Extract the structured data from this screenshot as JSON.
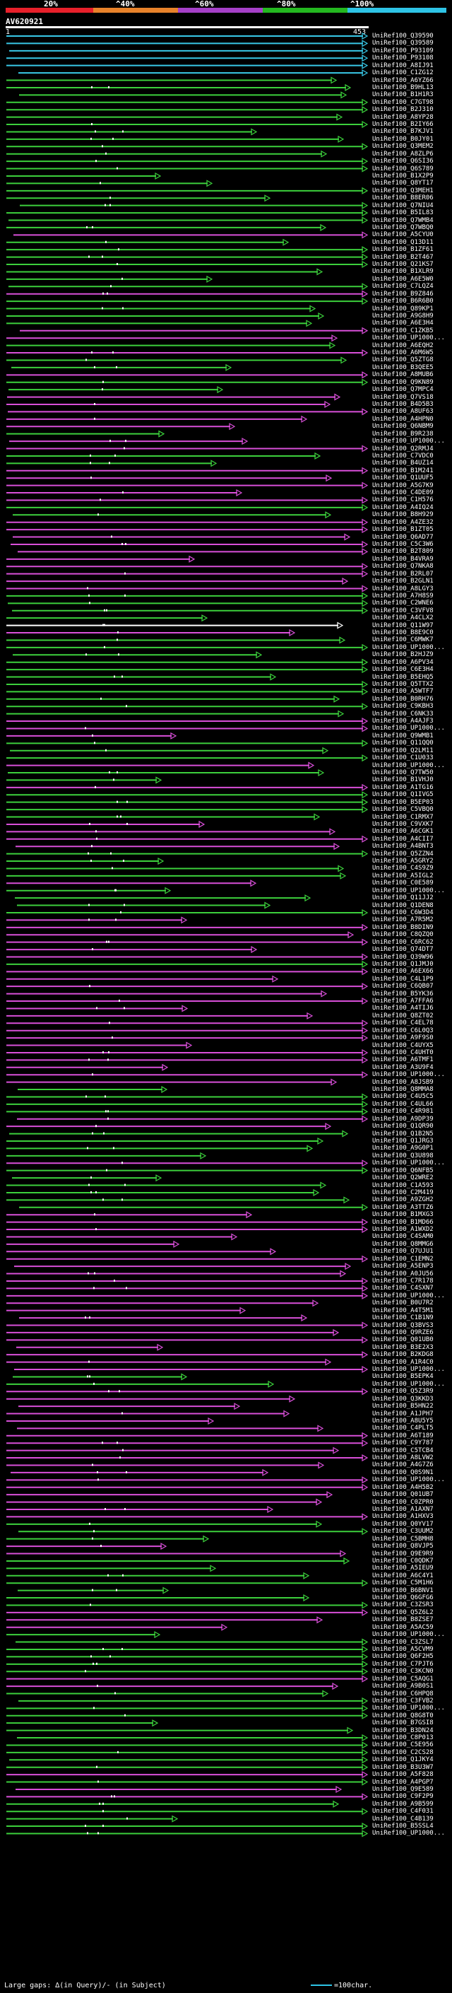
{
  "scale": {
    "labels": [
      "20%",
      "^40%",
      "^60%",
      "^80%",
      "^100%"
    ],
    "colors": [
      "#e8202a",
      "#e8822a",
      "#a640c8",
      "#24b820",
      "#2ec4e6"
    ]
  },
  "query": {
    "id": "AV620921",
    "start": "1",
    "end": "453"
  },
  "hit_colors": {
    "cyan": "#39c9e8",
    "green": "#3cd03c",
    "magenta": "#d94fd9",
    "white": "#ffffff"
  },
  "hits": [
    {
      "id": "UniRef100_Q39590",
      "c": "cyan"
    },
    {
      "id": "UniRef100_Q39589",
      "c": "cyan"
    },
    {
      "id": "UniRef100_P93109",
      "c": "cyan"
    },
    {
      "id": "UniRef100_P93108",
      "c": "cyan"
    },
    {
      "id": "UniRef100_A8IJ91",
      "c": "cyan"
    },
    {
      "id": "UniRef100_C1ZG12",
      "c": "cyan"
    },
    {
      "id": "UniRef100_A6YZ66",
      "c": "green"
    },
    {
      "id": "UniRef100_B9HL13",
      "c": "green"
    },
    {
      "id": "UniRef100_B1H1R3",
      "c": "green"
    },
    {
      "id": "UniRef100_C7GT98",
      "c": "green"
    },
    {
      "id": "UniRef100_B2J310",
      "c": "green"
    },
    {
      "id": "UniRef100_A8YP28",
      "c": "green"
    },
    {
      "id": "UniRef100_B2IY66",
      "c": "green"
    },
    {
      "id": "UniRef100_B7KJV1",
      "c": "green"
    },
    {
      "id": "UniRef100_B0JY01",
      "c": "green"
    },
    {
      "id": "UniRef100_Q3MEM2",
      "c": "green"
    },
    {
      "id": "UniRef100_A8ZLP6",
      "c": "green"
    },
    {
      "id": "UniRef100_Q6SI36",
      "c": "green"
    },
    {
      "id": "UniRef100_Q6S789",
      "c": "green"
    },
    {
      "id": "UniRef100_B1X2P9",
      "c": "green"
    },
    {
      "id": "UniRef100_Q8YT17",
      "c": "green"
    },
    {
      "id": "UniRef100_Q3MEH1",
      "c": "green"
    },
    {
      "id": "UniRef100_B8ER06",
      "c": "green"
    },
    {
      "id": "UniRef100_Q7NIU4",
      "c": "green"
    },
    {
      "id": "UniRef100_B5IL83",
      "c": "green"
    },
    {
      "id": "UniRef100_Q7WMB4",
      "c": "green"
    },
    {
      "id": "UniRef100_Q7WBQ0",
      "c": "green"
    },
    {
      "id": "UniRef100_A5CYU0",
      "c": "magenta"
    },
    {
      "id": "UniRef100_Q13D11",
      "c": "green"
    },
    {
      "id": "UniRef100_B1ZF61",
      "c": "green"
    },
    {
      "id": "UniRef100_B2T467",
      "c": "green"
    },
    {
      "id": "UniRef100_Q21KS7",
      "c": "green"
    },
    {
      "id": "UniRef100_B1XLR9",
      "c": "green"
    },
    {
      "id": "UniRef100_A6E5W0",
      "c": "green"
    },
    {
      "id": "UniRef100_C7LQZ4",
      "c": "green"
    },
    {
      "id": "UniRef100_B9Z846",
      "c": "magenta"
    },
    {
      "id": "UniRef100_B6R6B0",
      "c": "green"
    },
    {
      "id": "UniRef100_Q89KP1",
      "c": "green"
    },
    {
      "id": "UniRef100_A9G8H9",
      "c": "green"
    },
    {
      "id": "UniRef100_A6E3H4",
      "c": "green"
    },
    {
      "id": "UniRef100_C1ZKB5",
      "c": "magenta"
    },
    {
      "id": "UniRef100_UP1000...",
      "c": "magenta"
    },
    {
      "id": "UniRef100_A6EQH2",
      "c": "green"
    },
    {
      "id": "UniRef100_A6M6W5",
      "c": "magenta"
    },
    {
      "id": "UniRef100_Q5ZTG8",
      "c": "green"
    },
    {
      "id": "UniRef100_B3QEE5",
      "c": "green"
    },
    {
      "id": "UniRef100_A8MUB6",
      "c": "magenta"
    },
    {
      "id": "UniRef100_Q9KN89",
      "c": "green"
    },
    {
      "id": "UniRef100_Q7MPC4",
      "c": "green"
    },
    {
      "id": "UniRef100_Q7VS18",
      "c": "magenta"
    },
    {
      "id": "UniRef100_B4D5B3",
      "c": "magenta"
    },
    {
      "id": "UniRef100_A8UF63",
      "c": "magenta"
    },
    {
      "id": "UniRef100_A4HPN0",
      "c": "magenta"
    },
    {
      "id": "UniRef100_Q6NBM9",
      "c": "magenta"
    },
    {
      "id": "UniRef100_B9R238",
      "c": "green"
    },
    {
      "id": "UniRef100_UP1000...",
      "c": "magenta"
    },
    {
      "id": "UniRef100_Q2RMJ4",
      "c": "magenta"
    },
    {
      "id": "UniRef100_C7VDC0",
      "c": "green"
    },
    {
      "id": "UniRef100_B4UZ14",
      "c": "green"
    },
    {
      "id": "UniRef100_B1M241",
      "c": "magenta"
    },
    {
      "id": "UniRef100_Q1UUF5",
      "c": "magenta"
    },
    {
      "id": "UniRef100_A5G7K9",
      "c": "magenta"
    },
    {
      "id": "UniRef100_C4DE09",
      "c": "magenta"
    },
    {
      "id": "UniRef100_C1H576",
      "c": "magenta"
    },
    {
      "id": "UniRef100_A4IQ24",
      "c": "green"
    },
    {
      "id": "UniRef100_B8H929",
      "c": "green"
    },
    {
      "id": "UniRef100_A4ZE32",
      "c": "magenta"
    },
    {
      "id": "UniRef100_B1ZT05",
      "c": "magenta"
    },
    {
      "id": "UniRef100_Q6AD77",
      "c": "magenta"
    },
    {
      "id": "UniRef100_C5C3W6",
      "c": "magenta"
    },
    {
      "id": "UniRef100_B2T809",
      "c": "magenta"
    },
    {
      "id": "UniRef100_B4VRA9",
      "c": "magenta"
    },
    {
      "id": "UniRef100_Q7NKA8",
      "c": "magenta"
    },
    {
      "id": "UniRef100_B2RL07",
      "c": "magenta"
    },
    {
      "id": "UniRef100_B2GLN1",
      "c": "magenta"
    },
    {
      "id": "UniRef100_A8LGY3",
      "c": "magenta"
    },
    {
      "id": "UniRef100_A7H8S9",
      "c": "green"
    },
    {
      "id": "UniRef100_C2WNE6",
      "c": "green"
    },
    {
      "id": "UniRef100_C3VFV8",
      "c": "green"
    },
    {
      "id": "UniRef100_A4CLX2",
      "c": "green"
    },
    {
      "id": "UniRef100_Q11W97",
      "c": "white"
    },
    {
      "id": "UniRef100_B8E9C0",
      "c": "magenta"
    },
    {
      "id": "UniRef100_C6MWK7",
      "c": "green"
    },
    {
      "id": "UniRef100_UP1000...",
      "c": "green"
    },
    {
      "id": "UniRef100_B2HJZ9",
      "c": "green"
    },
    {
      "id": "UniRef100_A6PV34",
      "c": "green"
    },
    {
      "id": "UniRef100_C6E3H4",
      "c": "green"
    },
    {
      "id": "UniRef100_B5EHQ5",
      "c": "green"
    },
    {
      "id": "UniRef100_Q5TTX2",
      "c": "green"
    },
    {
      "id": "UniRef100_A5WTF7",
      "c": "green"
    },
    {
      "id": "UniRef100_B0RH76",
      "c": "green"
    },
    {
      "id": "UniRef100_C9KBH3",
      "c": "green"
    },
    {
      "id": "UniRef100_C6NK33",
      "c": "green"
    },
    {
      "id": "UniRef100_A4AJF3",
      "c": "magenta"
    },
    {
      "id": "UniRef100_UP1000...",
      "c": "magenta"
    },
    {
      "id": "UniRef100_Q9WMB1",
      "c": "magenta"
    },
    {
      "id": "UniRef100_Q11QQ0",
      "c": "green"
    },
    {
      "id": "UniRef100_Q2LM11",
      "c": "green"
    },
    {
      "id": "UniRef100_C1U033",
      "c": "green"
    },
    {
      "id": "UniRef100_UP1000...",
      "c": "magenta"
    },
    {
      "id": "UniRef100_Q7TW50",
      "c": "green"
    },
    {
      "id": "UniRef100_B1VHJ0",
      "c": "green"
    },
    {
      "id": "UniRef100_A1TG16",
      "c": "magenta"
    },
    {
      "id": "UniRef100_Q1IVG5",
      "c": "green"
    },
    {
      "id": "UniRef100_B5EP03",
      "c": "green"
    },
    {
      "id": "UniRef100_C5VBQ0",
      "c": "green"
    },
    {
      "id": "UniRef100_C1RMX7",
      "c": "green"
    },
    {
      "id": "UniRef100_C9VXK7",
      "c": "magenta"
    },
    {
      "id": "UniRef100_A6CGK1",
      "c": "magenta"
    },
    {
      "id": "UniRef100_A4CII7",
      "c": "magenta"
    },
    {
      "id": "UniRef100_A4BNT3",
      "c": "magenta"
    },
    {
      "id": "UniRef100_Q5ZZN4",
      "c": "green"
    },
    {
      "id": "UniRef100_A5GRY2",
      "c": "green"
    },
    {
      "id": "UniRef100_C4S9Z9",
      "c": "green"
    },
    {
      "id": "UniRef100_A5IGL2",
      "c": "green"
    },
    {
      "id": "UniRef100_C0E589",
      "c": "magenta"
    },
    {
      "id": "UniRef100_UP1000...",
      "c": "green"
    },
    {
      "id": "UniRef100_Q11JJ2",
      "c": "green"
    },
    {
      "id": "UniRef100_Q1DEN8",
      "c": "green"
    },
    {
      "id": "UniRef100_C6W3D4",
      "c": "green"
    },
    {
      "id": "UniRef100_A7R5M2",
      "c": "magenta"
    },
    {
      "id": "UniRef100_B8DIN9",
      "c": "magenta"
    },
    {
      "id": "UniRef100_C8QZQ0",
      "c": "magenta"
    },
    {
      "id": "UniRef100_C6RC62",
      "c": "magenta"
    },
    {
      "id": "UniRef100_Q74DT7",
      "c": "magenta"
    },
    {
      "id": "UniRef100_Q39W96",
      "c": "magenta"
    },
    {
      "id": "UniRef100_Q1JMJ0",
      "c": "green"
    },
    {
      "id": "UniRef100_A6EX66",
      "c": "magenta"
    },
    {
      "id": "UniRef100_C4L1P9",
      "c": "magenta"
    },
    {
      "id": "UniRef100_C6QB07",
      "c": "magenta"
    },
    {
      "id": "UniRef100_B5YK36",
      "c": "magenta"
    },
    {
      "id": "UniRef100_A7FFA6",
      "c": "magenta"
    },
    {
      "id": "UniRef100_A4TIJ6",
      "c": "magenta"
    },
    {
      "id": "UniRef100_Q8ZT02",
      "c": "magenta"
    },
    {
      "id": "UniRef100_C4EL78",
      "c": "magenta"
    },
    {
      "id": "UniRef100_C6L0Q3",
      "c": "magenta"
    },
    {
      "id": "UniRef100_A9F9S0",
      "c": "magenta"
    },
    {
      "id": "UniRef100_C4UYX5",
      "c": "magenta"
    },
    {
      "id": "UniRef100_C4UHT0",
      "c": "magenta"
    },
    {
      "id": "UniRef100_A6TMF1",
      "c": "magenta"
    },
    {
      "id": "UniRef100_A3U9F4",
      "c": "magenta"
    },
    {
      "id": "UniRef100_UP1000...",
      "c": "magenta"
    },
    {
      "id": "UniRef100_A8JSB9",
      "c": "magenta"
    },
    {
      "id": "UniRef100_Q8MMA8",
      "c": "green"
    },
    {
      "id": "UniRef100_C4U5C5",
      "c": "green"
    },
    {
      "id": "UniRef100_C4UL66",
      "c": "green"
    },
    {
      "id": "UniRef100_C4R981",
      "c": "green"
    },
    {
      "id": "UniRef100_A9DP39",
      "c": "magenta"
    },
    {
      "id": "UniRef100_Q1QR90",
      "c": "magenta"
    },
    {
      "id": "UniRef100_Q1B2N5",
      "c": "green"
    },
    {
      "id": "UniRef100_Q1JRG3",
      "c": "green"
    },
    {
      "id": "UniRef100_A9G0P1",
      "c": "green"
    },
    {
      "id": "UniRef100_Q3U898",
      "c": "green"
    },
    {
      "id": "UniRef100_UP1000...",
      "c": "magenta"
    },
    {
      "id": "UniRef100_Q6NFB5",
      "c": "green"
    },
    {
      "id": "UniRef100_Q2WRE2",
      "c": "green"
    },
    {
      "id": "UniRef100_C1A593",
      "c": "green"
    },
    {
      "id": "UniRef100_C2M419",
      "c": "green"
    },
    {
      "id": "UniRef100_A9ZGH2",
      "c": "green"
    },
    {
      "id": "UniRef100_A3TTZ6",
      "c": "green"
    },
    {
      "id": "UniRef100_B1MXG3",
      "c": "magenta"
    },
    {
      "id": "UniRef100_B1MD66",
      "c": "magenta"
    },
    {
      "id": "UniRef100_A1WXD2",
      "c": "magenta"
    },
    {
      "id": "UniRef100_C4SAM0",
      "c": "magenta"
    },
    {
      "id": "UniRef100_Q8MMG6",
      "c": "magenta"
    },
    {
      "id": "UniRef100_Q7UJU1",
      "c": "magenta"
    },
    {
      "id": "UniRef100_C1EMN2",
      "c": "magenta"
    },
    {
      "id": "UniRef100_A5ENP3",
      "c": "magenta"
    },
    {
      "id": "UniRef100_A0JU56",
      "c": "magenta"
    },
    {
      "id": "UniRef100_C7R178",
      "c": "magenta"
    },
    {
      "id": "UniRef100_C4SXN7",
      "c": "magenta"
    },
    {
      "id": "UniRef100_UP1000...",
      "c": "magenta"
    },
    {
      "id": "UniRef100_B0U7R2",
      "c": "magenta"
    },
    {
      "id": "UniRef100_A4T5M1",
      "c": "magenta"
    },
    {
      "id": "UniRef100_C1B1N9",
      "c": "magenta"
    },
    {
      "id": "UniRef100_Q3BVS3",
      "c": "magenta"
    },
    {
      "id": "UniRef100_Q9RZE6",
      "c": "magenta"
    },
    {
      "id": "UniRef100_Q01UB0",
      "c": "magenta"
    },
    {
      "id": "UniRef100_B3E2X3",
      "c": "magenta"
    },
    {
      "id": "UniRef100_B2KDG8",
      "c": "magenta"
    },
    {
      "id": "UniRef100_A1R4C0",
      "c": "magenta"
    },
    {
      "id": "UniRef100_UP1000...",
      "c": "magenta"
    },
    {
      "id": "UniRef100_B5EPK4",
      "c": "green"
    },
    {
      "id": "UniRef100_UP1000...",
      "c": "green"
    },
    {
      "id": "UniRef100_Q5Z3R9",
      "c": "magenta"
    },
    {
      "id": "UniRef100_Q3KKD3",
      "c": "magenta"
    },
    {
      "id": "UniRef100_B5HN22",
      "c": "magenta"
    },
    {
      "id": "UniRef100_A1JPH7",
      "c": "magenta"
    },
    {
      "id": "UniRef100_A8U5Y5",
      "c": "magenta"
    },
    {
      "id": "UniRef100_C4PLT5",
      "c": "magenta"
    },
    {
      "id": "UniRef100_A6T189",
      "c": "magenta"
    },
    {
      "id": "UniRef100_C9Y787",
      "c": "magenta"
    },
    {
      "id": "UniRef100_C5TCB4",
      "c": "magenta"
    },
    {
      "id": "UniRef100_A8LVW2",
      "c": "magenta"
    },
    {
      "id": "UniRef100_A4G7Z6",
      "c": "magenta"
    },
    {
      "id": "UniRef100_Q0S9N1",
      "c": "magenta"
    },
    {
      "id": "UniRef100_UP1000...",
      "c": "magenta"
    },
    {
      "id": "UniRef100_A4H5B2",
      "c": "magenta"
    },
    {
      "id": "UniRef100_Q01UB7",
      "c": "magenta"
    },
    {
      "id": "UniRef100_C0ZPR0",
      "c": "magenta"
    },
    {
      "id": "UniRef100_A1AXN7",
      "c": "magenta"
    },
    {
      "id": "UniRef100_A1HXV3",
      "c": "magenta"
    },
    {
      "id": "UniRef100_Q0YV17",
      "c": "green"
    },
    {
      "id": "UniRef100_C3UUM2",
      "c": "green"
    },
    {
      "id": "UniRef100_C5BMH8",
      "c": "green"
    },
    {
      "id": "UniRef100_Q8VJP5",
      "c": "magenta"
    },
    {
      "id": "UniRef100_Q9E9R9",
      "c": "magenta"
    },
    {
      "id": "UniRef100_C0QDK7",
      "c": "green"
    },
    {
      "id": "UniRef100_A5IEU9",
      "c": "green"
    },
    {
      "id": "UniRef100_A6C4Y1",
      "c": "green"
    },
    {
      "id": "UniRef100_C5M1H6",
      "c": "green"
    },
    {
      "id": "UniRef100_B6BNV1",
      "c": "green"
    },
    {
      "id": "UniRef100_Q6GFG6",
      "c": "green"
    },
    {
      "id": "UniRef100_C3ZSR3",
      "c": "green"
    },
    {
      "id": "UniRef100_Q5Z6L2",
      "c": "magenta"
    },
    {
      "id": "UniRef100_B8ZSE7",
      "c": "magenta"
    },
    {
      "id": "UniRef100_A5AC59",
      "c": "magenta"
    },
    {
      "id": "UniRef100_UP1000...",
      "c": "green"
    },
    {
      "id": "UniRef100_C3ZSL7",
      "c": "green"
    },
    {
      "id": "UniRef100_A5CVM9",
      "c": "green"
    },
    {
      "id": "UniRef100_Q6F2H5",
      "c": "green"
    },
    {
      "id": "UniRef100_C7PJT6",
      "c": "green"
    },
    {
      "id": "UniRef100_C3KCN0",
      "c": "green"
    },
    {
      "id": "UniRef100_C5AQG1",
      "c": "magenta"
    },
    {
      "id": "UniRef100_A9B0S1",
      "c": "magenta"
    },
    {
      "id": "UniRef100_C6HPQ8",
      "c": "green"
    },
    {
      "id": "UniRef100_C3FVB2",
      "c": "green"
    },
    {
      "id": "UniRef100_UP1000...",
      "c": "green"
    },
    {
      "id": "UniRef100_Q8G8T0",
      "c": "green"
    },
    {
      "id": "UniRef100_B7GSI8",
      "c": "green"
    },
    {
      "id": "UniRef100_B3DN24",
      "c": "green"
    },
    {
      "id": "UniRef100_C8P013",
      "c": "green"
    },
    {
      "id": "UniRef100_C5E956",
      "c": "green"
    },
    {
      "id": "UniRef100_C2CS28",
      "c": "green"
    },
    {
      "id": "UniRef100_Q1JKY4",
      "c": "green"
    },
    {
      "id": "UniRef100_B3U3W7",
      "c": "green"
    },
    {
      "id": "UniRef100_A5F828",
      "c": "magenta"
    },
    {
      "id": "UniRef100_A4PGP7",
      "c": "green"
    },
    {
      "id": "UniRef100_Q9E589",
      "c": "magenta"
    },
    {
      "id": "UniRef100_C9F2P9",
      "c": "magenta"
    },
    {
      "id": "UniRef100_A9B599",
      "c": "green"
    },
    {
      "id": "UniRef100_C4F031",
      "c": "green"
    },
    {
      "id": "UniRef100_C4B139",
      "c": "green"
    },
    {
      "id": "UniRef100_B5SSL4",
      "c": "green"
    },
    {
      "id": "UniRef100_UP1000...",
      "c": "green"
    }
  ],
  "footer": {
    "left": "Large gaps: ∆(in Query)/- (in Subject)",
    "right": "=100char."
  }
}
